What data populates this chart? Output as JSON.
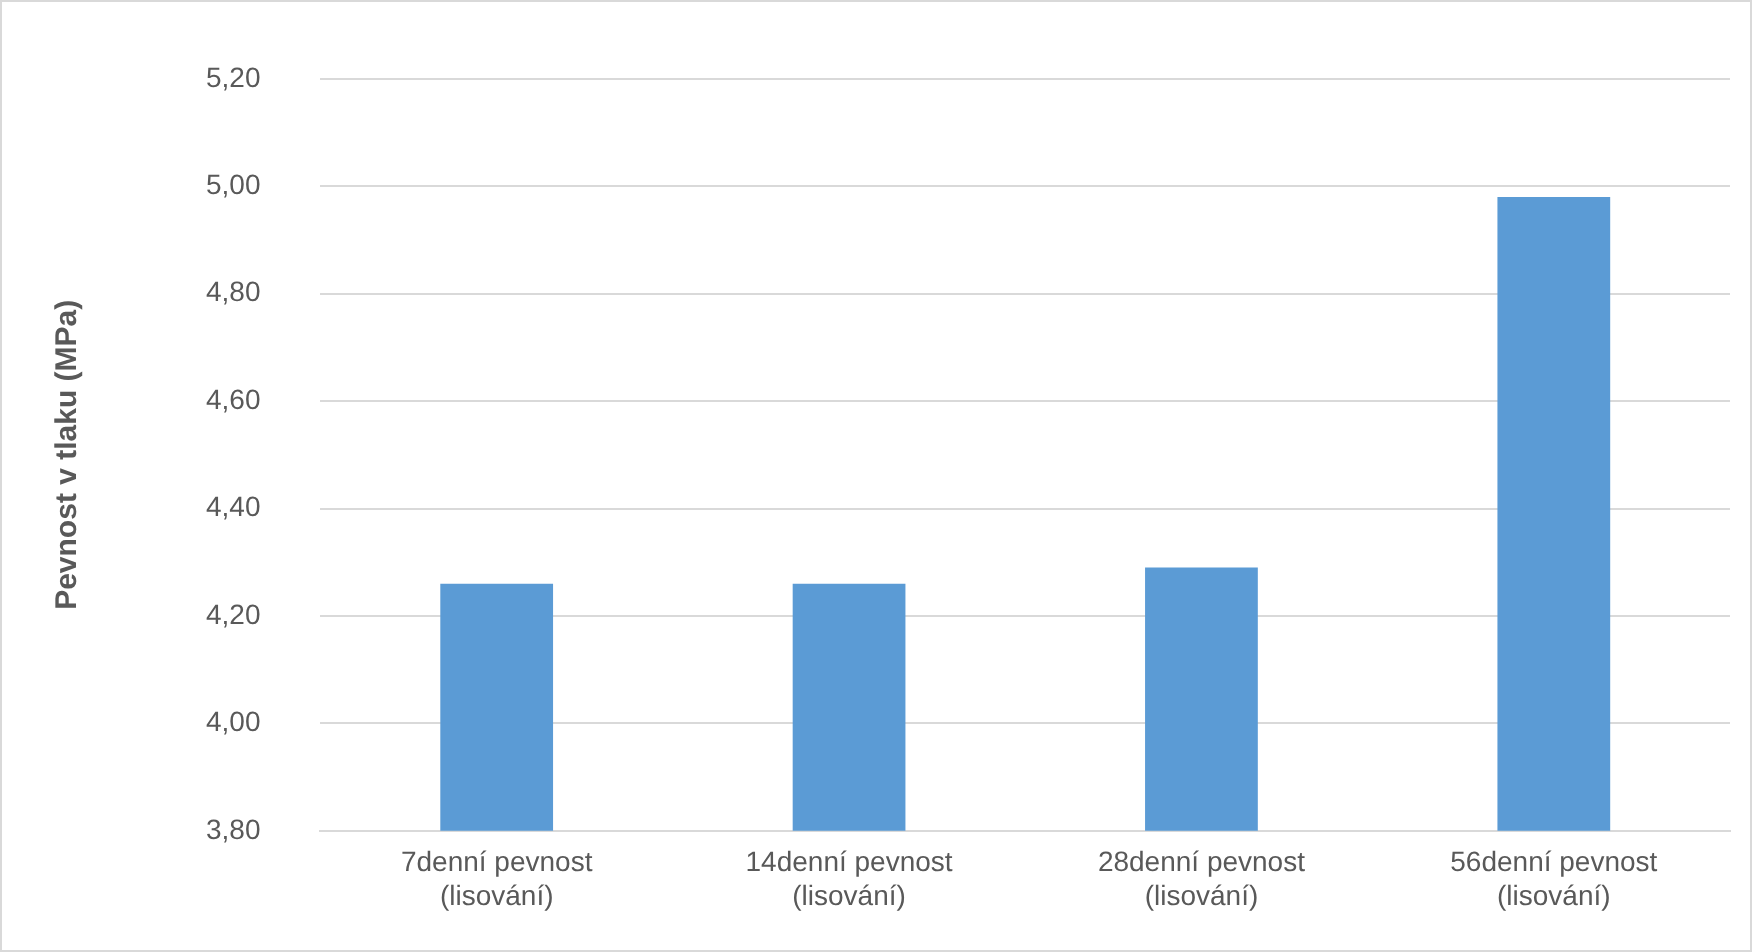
{
  "chart_data": {
    "type": "bar",
    "ylabel": "Pevnost v tlaku (MPa)",
    "categories": [
      "7denní pevnost\n(lisování)",
      "14denní pevnost\n(lisování)",
      "28denní pevnost\n(lisování)",
      "56denní pevnost\n(lisování)"
    ],
    "values": [
      4.26,
      4.26,
      4.29,
      4.98
    ],
    "color": "#5b9bd5",
    "ylim": [
      3.8,
      5.2
    ],
    "yticks": [
      {
        "value": 3.8,
        "label": "3,80"
      },
      {
        "value": 4.0,
        "label": "4,00"
      },
      {
        "value": 4.2,
        "label": "4,20"
      },
      {
        "value": 4.4,
        "label": "4,40"
      },
      {
        "value": 4.6,
        "label": "4,60"
      },
      {
        "value": 4.8,
        "label": "4,80"
      },
      {
        "value": 5.0,
        "label": "5,00"
      },
      {
        "value": 5.2,
        "label": "5,20"
      }
    ],
    "grid": "y",
    "legend": false
  }
}
